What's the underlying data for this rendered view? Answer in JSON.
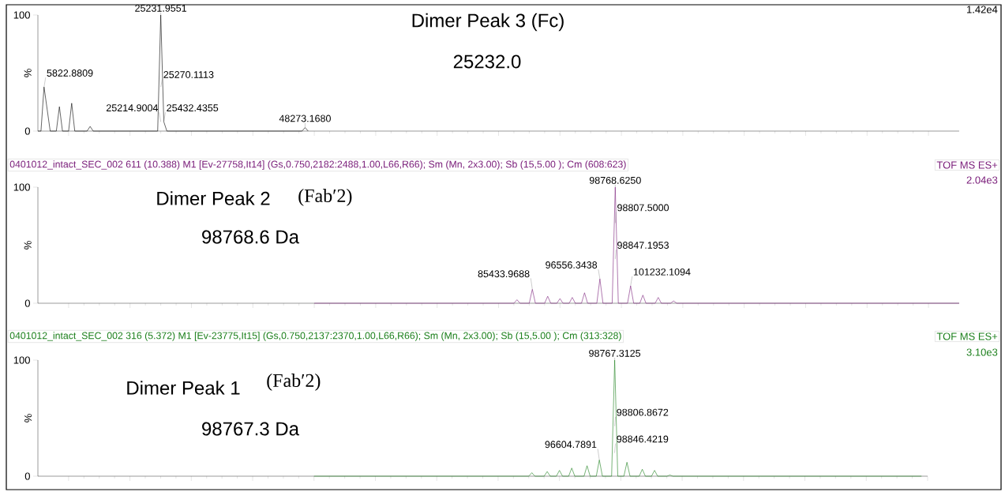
{
  "chart_data": [
    {
      "type": "line",
      "ylabel": "%",
      "color": "#000000",
      "ylim": [
        0,
        100
      ],
      "tick_labels": "y",
      "yticks": [
        0,
        100
      ],
      "categories": [
        null,
        null,
        null,
        null,
        null,
        null,
        null,
        null,
        null,
        null,
        null,
        null,
        null,
        null,
        null,
        null,
        null,
        null,
        null,
        null,
        null,
        null,
        null,
        null,
        null,
        null,
        null,
        null,
        null,
        null,
        null,
        null,
        null,
        null,
        null,
        null,
        null,
        null,
        null,
        null,
        null,
        null,
        null,
        null,
        null,
        null,
        null,
        null,
        null,
        null,
        null,
        null,
        null,
        null,
        null,
        null,
        null,
        null,
        null,
        null,
        null,
        null,
        null,
        null,
        null,
        null,
        null,
        null,
        null,
        null,
        null,
        null,
        null,
        null,
        null,
        null,
        null,
        null,
        null,
        null,
        null,
        null,
        null,
        null,
        null,
        null,
        null,
        null,
        null,
        null,
        null,
        null,
        null,
        null,
        null,
        null,
        null,
        null,
        null,
        null,
        null,
        null,
        null,
        null,
        null,
        null,
        null,
        null,
        null,
        null,
        null,
        null,
        null,
        null,
        null,
        null,
        null,
        null,
        null,
        null,
        null,
        null,
        null,
        null,
        null,
        null,
        null,
        null,
        null,
        null,
        null,
        null,
        null,
        null,
        null,
        null,
        null,
        null,
        null,
        null,
        null,
        null,
        null,
        null,
        null,
        null,
        null,
        null,
        null,
        null,
        null,
        null,
        null,
        null,
        null,
        null,
        null,
        null,
        null,
        null,
        null,
        null,
        null,
        null,
        null,
        null,
        null,
        null,
        null,
        null,
        null,
        null,
        null,
        null,
        null,
        null,
        null,
        null,
        null,
        null,
        null,
        null,
        null,
        null,
        null,
        null,
        null,
        null,
        null,
        null,
        null,
        null,
        null,
        null,
        null,
        null,
        null,
        null,
        null,
        null,
        null,
        null,
        null,
        null,
        null,
        null,
        null,
        null,
        null,
        null,
        null,
        null,
        null,
        null,
        null,
        null,
        null,
        null,
        null,
        null,
        null,
        null,
        null,
        null,
        null,
        null,
        null,
        null,
        null,
        null,
        null,
        null,
        null,
        null,
        null,
        null,
        null,
        null,
        null,
        null,
        null,
        null,
        null,
        null,
        null,
        null,
        null,
        null,
        null,
        null,
        null,
        null,
        null,
        null,
        null,
        null,
        null,
        null,
        null,
        null,
        null,
        null,
        null,
        null,
        null,
        null,
        null,
        null,
        null,
        null,
        null,
        null,
        null,
        null,
        null,
        null,
        null,
        null,
        null,
        null,
        null,
        null,
        null,
        null,
        null,
        null,
        null,
        null,
        null,
        null,
        null,
        null,
        null,
        null,
        null,
        null,
        null,
        null,
        null,
        null,
        null
      ],
      "values": [
        0,
        0,
        38,
        19,
        0,
        0,
        0,
        21,
        0,
        0,
        0,
        24,
        0,
        0,
        0,
        0,
        0,
        4,
        0,
        0,
        0,
        0,
        0,
        0,
        0,
        0,
        0,
        0,
        0,
        0,
        0,
        0,
        0,
        0,
        0,
        0,
        0,
        0,
        0,
        0,
        100,
        8,
        0,
        0,
        0,
        0,
        0,
        0,
        0,
        0,
        0,
        0,
        0,
        0,
        0,
        0,
        0,
        0,
        0,
        0,
        0,
        0,
        0,
        0,
        0,
        0,
        0,
        0,
        0,
        0,
        0,
        0,
        0,
        0,
        0,
        0,
        0,
        0,
        0,
        0,
        0,
        0,
        0,
        0,
        0,
        0,
        0,
        3,
        0,
        null,
        null,
        null,
        null,
        null,
        null,
        null,
        null,
        null,
        null,
        null,
        null,
        null,
        null,
        null,
        null,
        null,
        null,
        null,
        null,
        null,
        null,
        null,
        null,
        null,
        null,
        null,
        null,
        null,
        null,
        null,
        null,
        null,
        null,
        null,
        null,
        null,
        null,
        null,
        null,
        null,
        null,
        null,
        null,
        null,
        null,
        null,
        null,
        null,
        null,
        null,
        null,
        null,
        null,
        null,
        null,
        null,
        null,
        null,
        null,
        null,
        null,
        null,
        null,
        null,
        null,
        null,
        null,
        null,
        null,
        null,
        null,
        null,
        null,
        null,
        null,
        null,
        null,
        null,
        null,
        null,
        null,
        null,
        null,
        null,
        null,
        null,
        null,
        null,
        null,
        null,
        null,
        null,
        null,
        null,
        null,
        null,
        null,
        null,
        null,
        null,
        null,
        null,
        null,
        null,
        null,
        null,
        null,
        null,
        null,
        null,
        null,
        null,
        null,
        null,
        null,
        null,
        null,
        null,
        null,
        null,
        null,
        null,
        null,
        null,
        null,
        null,
        null,
        null,
        null,
        null,
        null,
        null,
        null,
        null,
        null,
        null,
        null,
        null,
        null,
        null,
        null,
        null,
        null,
        null,
        null,
        null,
        null,
        null,
        null,
        null,
        null,
        null,
        null,
        null,
        null,
        null,
        null,
        null,
        null,
        null,
        null,
        null,
        null,
        null,
        null,
        null,
        null,
        null,
        null,
        null,
        null,
        null,
        null,
        null,
        null,
        null,
        null,
        null,
        null,
        null,
        null,
        null,
        null,
        null,
        null,
        null,
        null,
        null,
        null,
        null,
        null,
        null,
        null,
        null,
        null,
        null,
        null,
        null,
        null,
        null,
        null,
        null,
        null,
        null,
        null,
        null,
        null,
        null,
        null,
        null,
        null
      ],
      "annotations": [
        "Dimer Peak 3 (Fc)",
        "25232.0",
        "1.42e4",
        "5822.8809",
        {
          "text": "25231.9551",
          "y": 100
        },
        "25270.1113",
        "25214.9004",
        "25432.4355",
        {
          "text": "48273.1680",
          "y": 3
        }
      ]
    },
    {
      "type": "line",
      "title": "0401012_intact_SEC_002  611 (10.388) M1 [Ev-27758,It14] (Gs,0.750,2182:2488,1.00,L66,R66); Sm (Mn, 2x3.00); Sb (15,5.00 ); Cm (608:623)",
      "ylabel": "%",
      "color": "#7b1f7b",
      "ylim": [
        0,
        100
      ],
      "tick_labels": "y",
      "yticks": [
        0,
        100
      ],
      "categories": [
        null,
        null,
        null,
        null,
        null,
        null,
        null,
        null,
        null,
        null,
        null,
        null,
        null,
        null,
        null,
        null,
        null,
        null,
        null,
        null,
        null,
        null,
        null,
        null,
        null,
        null,
        null,
        null,
        null,
        null,
        null,
        null,
        null,
        null,
        null,
        null,
        null,
        null,
        null,
        null,
        null,
        null,
        null,
        null,
        null,
        null,
        null,
        null,
        null,
        null,
        null,
        null,
        null,
        null,
        null,
        null,
        null,
        null,
        null,
        null,
        null,
        null,
        null,
        null,
        null,
        null,
        null,
        null,
        null,
        null,
        null,
        null,
        null,
        null,
        null,
        null,
        null,
        null,
        null,
        null,
        null,
        null,
        null,
        null,
        null,
        null,
        null,
        null,
        null,
        null,
        null,
        null,
        null,
        null,
        null,
        null,
        null,
        null,
        null,
        null,
        null,
        null,
        null,
        null,
        null,
        null,
        null,
        null,
        null,
        null,
        null,
        null,
        null,
        null,
        null,
        null,
        null,
        null,
        null,
        null,
        null,
        null,
        null,
        null,
        null,
        null,
        null,
        null,
        null,
        null,
        null,
        null,
        null,
        null,
        null,
        null,
        null,
        null,
        null,
        null,
        null,
        null,
        null,
        null,
        null,
        null,
        null,
        null,
        null,
        null,
        null,
        null,
        null,
        null,
        null,
        null,
        null,
        null,
        null,
        null,
        null,
        null,
        null,
        null,
        null,
        null,
        null,
        null,
        null,
        null,
        null,
        null,
        null,
        null,
        null,
        null,
        null,
        null,
        null,
        null,
        null,
        null,
        null,
        null,
        null,
        null,
        null,
        null,
        null,
        null,
        null,
        null,
        null,
        null,
        null,
        null,
        null,
        null,
        null,
        null,
        null,
        null,
        null,
        null,
        null,
        null,
        null,
        null,
        null,
        null,
        null,
        null,
        null,
        null,
        null,
        null,
        null,
        null,
        null,
        null,
        null,
        null,
        null,
        null,
        null,
        null,
        null,
        null,
        null,
        null,
        null,
        null,
        null,
        null,
        null,
        null,
        null,
        null,
        null,
        null,
        null,
        null,
        null,
        null,
        null,
        null,
        null,
        null,
        null,
        null,
        null,
        null,
        null,
        null,
        null,
        null,
        null,
        null,
        null,
        null,
        null,
        null,
        null,
        null,
        null,
        null,
        null,
        null,
        null,
        null,
        null,
        null,
        null,
        null,
        null,
        null,
        null,
        null,
        null,
        null,
        null,
        null,
        null,
        null,
        null,
        null,
        null,
        null,
        null,
        null,
        null,
        null,
        null,
        null,
        null,
        null,
        null,
        null,
        null,
        null,
        null
      ],
      "values": [
        null,
        null,
        null,
        null,
        null,
        null,
        null,
        null,
        null,
        null,
        null,
        null,
        null,
        null,
        null,
        null,
        null,
        null,
        null,
        null,
        null,
        null,
        null,
        null,
        null,
        null,
        null,
        null,
        null,
        null,
        null,
        null,
        null,
        null,
        null,
        null,
        null,
        null,
        null,
        null,
        null,
        null,
        null,
        null,
        null,
        null,
        null,
        null,
        null,
        null,
        null,
        null,
        null,
        null,
        null,
        null,
        null,
        null,
        null,
        null,
        null,
        null,
        null,
        null,
        null,
        null,
        null,
        null,
        null,
        null,
        null,
        null,
        null,
        null,
        null,
        null,
        null,
        null,
        null,
        null,
        null,
        null,
        null,
        null,
        null,
        null,
        null,
        null,
        null,
        null,
        0,
        0,
        0,
        0,
        0,
        0,
        0,
        0,
        0,
        0,
        0,
        0,
        0,
        0,
        0,
        0,
        0,
        0,
        0,
        0,
        0,
        0,
        0,
        0,
        0,
        0,
        0,
        0,
        0,
        0,
        0,
        0,
        0,
        0,
        0,
        0,
        0,
        0,
        0,
        0,
        0,
        0,
        0,
        0,
        0,
        0,
        0,
        0,
        0,
        0,
        0,
        0,
        0,
        0,
        0,
        0,
        0,
        0,
        0,
        0,
        0,
        0,
        0,
        0,
        0,
        0,
        3,
        0,
        0,
        0,
        0,
        12,
        0,
        0,
        0,
        0,
        6,
        0,
        0,
        0,
        4,
        0,
        0,
        0,
        5,
        0,
        0,
        0,
        9,
        0,
        0,
        0,
        0,
        21,
        0,
        0,
        0,
        0,
        100,
        0,
        0,
        0,
        0,
        15,
        0,
        0,
        0,
        7,
        0,
        0,
        0,
        0,
        5,
        0,
        0,
        0,
        0,
        2,
        0,
        0,
        0,
        0,
        0,
        0,
        0,
        0,
        0,
        0,
        0,
        0,
        0,
        0,
        0,
        0,
        0,
        0,
        0,
        0,
        0,
        0,
        0,
        0,
        0,
        0,
        0,
        0,
        0,
        0,
        0,
        0,
        0,
        0,
        0,
        0,
        0,
        0,
        0,
        0,
        0,
        0,
        0,
        0,
        0,
        0,
        0,
        0,
        0,
        0,
        0,
        0,
        0,
        0,
        0,
        0,
        0,
        0,
        0,
        0,
        0,
        0,
        0,
        0,
        0,
        0,
        0,
        0,
        0,
        0,
        0,
        0,
        0,
        0,
        0,
        0,
        0,
        0,
        0,
        0,
        0,
        0,
        0,
        0,
        0,
        0,
        0,
        0,
        0,
        0,
        0,
        0,
        0
      ],
      "annotations": [
        "TOF MS ES+",
        "2.04e3",
        "Dimer Peak 2",
        "(Fab′2)",
        "98768.6 Da",
        {
          "text": "98768.6250",
          "y": 100
        },
        "98807.5000",
        "98847.1953",
        "96556.3438",
        "85433.9688",
        "101232.1094"
      ]
    },
    {
      "type": "line",
      "title": "0401012_intact_SEC_002  316 (5.372) M1 [Ev-23775,It15] (Gs,0.750,2137:2370,1.00,L66,R66); Sm (Mn, 2x3.00); Sb (15,5.00 ); Cm (313:328)",
      "ylabel": "%",
      "color": "#1b7f1b",
      "ylim": [
        0,
        100
      ],
      "tick_labels": "y",
      "yticks": [
        0,
        100
      ],
      "categories": [
        null,
        null,
        null,
        null,
        null,
        null,
        null,
        null,
        null,
        null,
        null,
        null,
        null,
        null,
        null,
        null,
        null,
        null,
        null,
        null,
        null,
        null,
        null,
        null,
        null,
        null,
        null,
        null,
        null,
        null,
        null,
        null,
        null,
        null,
        null,
        null,
        null,
        null,
        null,
        null,
        null,
        null,
        null,
        null,
        null,
        null,
        null,
        null,
        null,
        null,
        null,
        null,
        null,
        null,
        null,
        null,
        null,
        null,
        null,
        null,
        null,
        null,
        null,
        null,
        null,
        null,
        null,
        null,
        null,
        null,
        null,
        null,
        null,
        null,
        null,
        null,
        null,
        null,
        null,
        null,
        null,
        null,
        null,
        null,
        null,
        null,
        null,
        null,
        null,
        null,
        null,
        null,
        null,
        null,
        null,
        null,
        null,
        null,
        null,
        null,
        null,
        null,
        null,
        null,
        null,
        null,
        null,
        null,
        null,
        null,
        null,
        null,
        null,
        null,
        null,
        null,
        null,
        null,
        null,
        null,
        null,
        null,
        null,
        null,
        null,
        null,
        null,
        null,
        null,
        null,
        null,
        null,
        null,
        null,
        null,
        null,
        null,
        null,
        null,
        null,
        null,
        null,
        null,
        null,
        null,
        null,
        null,
        null,
        null,
        null,
        null,
        null,
        null,
        null,
        null,
        null,
        null,
        null,
        null,
        null,
        null,
        null,
        null,
        null,
        null,
        null,
        null,
        null,
        null,
        null,
        null,
        null,
        null,
        null,
        null,
        null,
        null,
        null,
        null,
        null,
        null,
        null,
        null,
        null,
        null,
        null,
        null,
        null,
        null,
        null,
        null,
        null,
        null,
        null,
        null,
        null,
        null,
        null,
        null,
        null,
        null,
        null,
        null,
        null,
        null,
        null,
        null,
        null,
        null,
        null,
        null,
        null,
        null,
        null,
        null,
        null,
        null,
        null,
        null,
        null,
        null,
        null,
        null,
        null,
        null,
        null,
        null,
        null,
        null,
        null,
        null,
        null,
        null,
        null,
        null,
        null,
        null,
        null,
        null,
        null,
        null,
        null,
        null,
        null,
        null,
        null,
        null,
        null,
        null,
        null,
        null,
        null,
        null,
        null,
        null,
        null,
        null,
        null,
        null,
        null,
        null,
        null,
        null,
        null,
        null,
        null,
        null,
        null,
        null,
        null,
        null,
        null,
        null,
        null,
        null,
        null,
        null,
        null,
        null,
        null,
        null,
        null,
        null,
        null,
        null,
        null,
        null,
        null,
        null,
        null,
        null
      ],
      "values": [
        null,
        null,
        null,
        null,
        null,
        null,
        null,
        null,
        null,
        null,
        null,
        null,
        null,
        null,
        null,
        null,
        null,
        null,
        null,
        null,
        null,
        null,
        null,
        null,
        null,
        null,
        null,
        null,
        null,
        null,
        null,
        null,
        null,
        null,
        null,
        null,
        null,
        null,
        null,
        null,
        null,
        null,
        null,
        null,
        null,
        null,
        null,
        null,
        null,
        null,
        null,
        null,
        null,
        null,
        null,
        null,
        null,
        null,
        null,
        null,
        null,
        null,
        null,
        null,
        null,
        null,
        null,
        null,
        null,
        null,
        null,
        null,
        null,
        null,
        null,
        null,
        null,
        null,
        null,
        null,
        null,
        null,
        null,
        null,
        null,
        null,
        null,
        null,
        null,
        null,
        0,
        0,
        0,
        0,
        0,
        0,
        0,
        0,
        0,
        0,
        0,
        0,
        0,
        0,
        0,
        0,
        0,
        0,
        0,
        0,
        0,
        0,
        0,
        0,
        0,
        0,
        0,
        0,
        0,
        0,
        0,
        0,
        0,
        0,
        0,
        0,
        0,
        0,
        0,
        0,
        0,
        0,
        0,
        0,
        0,
        0,
        0,
        0,
        0,
        0,
        0,
        0,
        0,
        0,
        0,
        0,
        0,
        0,
        0,
        0,
        0,
        0,
        0,
        0,
        0,
        0,
        0,
        0,
        0,
        0,
        0,
        3,
        0,
        0,
        0,
        0,
        4,
        0,
        0,
        0,
        5,
        0,
        0,
        0,
        7,
        0,
        0,
        0,
        0,
        9,
        0,
        0,
        0,
        14,
        0,
        0,
        0,
        0,
        100,
        0,
        0,
        0,
        12,
        0,
        0,
        0,
        0,
        6,
        0,
        0,
        0,
        5,
        0,
        0,
        0,
        0,
        1,
        0,
        0,
        0,
        0,
        0,
        0,
        0,
        0,
        0,
        0,
        0,
        0,
        0,
        0,
        0,
        0,
        0,
        0,
        0,
        0,
        0,
        0,
        0,
        0,
        0,
        0,
        0,
        0,
        0,
        0,
        0,
        0,
        0,
        0,
        0,
        0,
        0,
        0,
        0,
        0,
        0,
        0,
        0,
        0,
        0,
        0,
        0,
        0,
        0,
        0,
        0,
        0,
        0,
        0,
        0,
        0,
        0,
        0,
        0,
        0,
        0,
        0,
        0,
        0,
        0,
        0,
        0,
        0,
        0,
        0,
        0,
        0,
        0,
        0,
        0,
        0,
        0,
        0,
        0,
        0,
        0,
        0,
        null,
        null
      ],
      "annotations": [
        "TOF MS ES+",
        "3.10e3",
        "Dimer Peak 1",
        "(Fab′2)",
        "98767.3 Da",
        {
          "text": "98767.3125",
          "y": 100
        },
        "98806.8672",
        "98846.4219",
        "96604.7891"
      ]
    }
  ]
}
